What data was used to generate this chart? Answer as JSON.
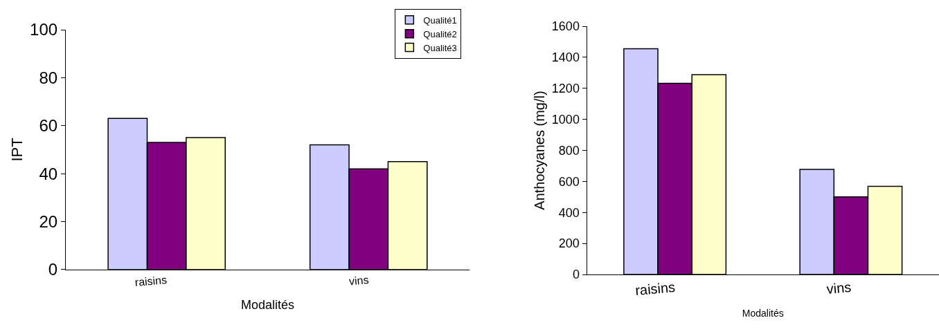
{
  "chart_data": [
    {
      "type": "bar",
      "categories": [
        "raisins",
        "vins"
      ],
      "xlabel": "Modalités",
      "ylabel": "IPT",
      "ylim": [
        0,
        100
      ],
      "yticks": [
        0,
        20,
        40,
        60,
        80,
        100
      ],
      "grid": false,
      "legend": "top right",
      "series": [
        {
          "name": "Qualité1",
          "color": "#ccccff",
          "values": [
            63,
            52
          ]
        },
        {
          "name": "Qualité2",
          "color": "#800080",
          "values": [
            53,
            42
          ]
        },
        {
          "name": "Qualité3",
          "color": "#ffffcc",
          "values": [
            55,
            45
          ]
        }
      ]
    },
    {
      "type": "bar",
      "categories": [
        "raisins",
        "vins"
      ],
      "xlabel": "Modalités",
      "ylabel": "Anthocyanes (mg/l)",
      "ylim": [
        0,
        1600
      ],
      "yticks": [
        0,
        200,
        400,
        600,
        800,
        1000,
        1200,
        1400,
        1600
      ],
      "grid": false,
      "legend": false,
      "series": [
        {
          "color": "#ccccff",
          "values": [
            1455,
            677
          ]
        },
        {
          "color": "#800080",
          "values": [
            1232,
            500
          ]
        },
        {
          "color": "#ffffcc",
          "values": [
            1288,
            568
          ]
        }
      ]
    }
  ]
}
